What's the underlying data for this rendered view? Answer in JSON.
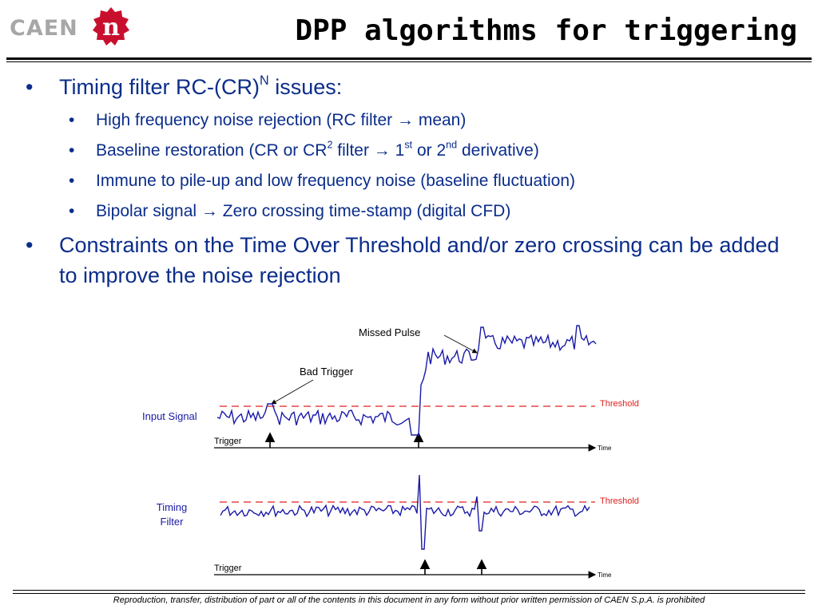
{
  "logo": {
    "text": "CAEN",
    "mark_letter": "n",
    "mark_color": "#c8102e"
  },
  "title": "DPP algorithms for triggering",
  "bullets": [
    {
      "pre": "Timing filter RC-(CR)",
      "sup": "N",
      "post": " issues:"
    },
    {
      "text": "Constraints on the Time Over Threshold and/or zero crossing can be added to improve the noise rejection"
    }
  ],
  "sub_bullets": [
    {
      "pre": "High frequency noise rejection (RC filter ",
      "arrow": "→",
      "post": " mean)"
    },
    {
      "a": "Baseline restoration (CR or CR",
      "sup1": "2",
      "b": " filter ",
      "arrow": "→",
      "c": " 1",
      "sup2": "st",
      "d": " or 2",
      "sup3": "nd",
      "e": " derivative)"
    },
    {
      "text": "Immune to pile-up and low frequency noise (baseline fluctuation)"
    },
    {
      "pre": "Bipolar signal ",
      "arrow": "→",
      "post": " Zero crossing time-stamp (digital CFD)"
    }
  ],
  "diagram": {
    "missed_pulse": "Missed Pulse",
    "bad_trigger": "Bad Trigger",
    "input_signal": "Input Signal",
    "timing_filter_line1": "Timing",
    "timing_filter_line2": "Filter",
    "threshold_top": "Threshold",
    "threshold_bottom": "Threshold",
    "trigger_top": "Trigger",
    "trigger_bottom": "Trigger",
    "time_top": "Time",
    "time_bottom": "Time",
    "signal_color": "#1a1aa8",
    "threshold_color": "#e02020"
  },
  "footer": "Reproduction, transfer, distribution of part or all of the contents in this document in any form without prior written permission of  CAEN S.p.A. is prohibited"
}
